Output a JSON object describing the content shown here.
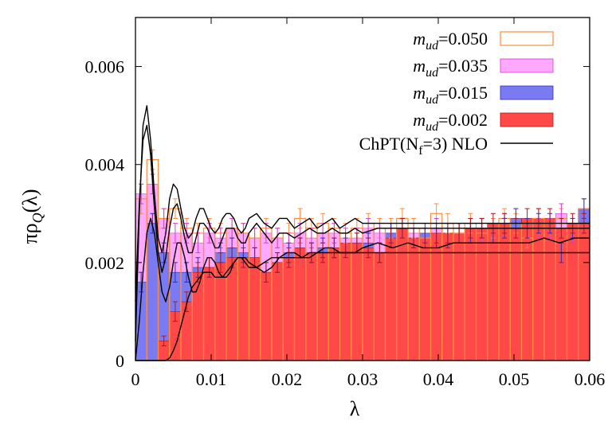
{
  "chart_data": {
    "type": "bar",
    "xlabel": "λ",
    "ylabel_parts": {
      "main": "πρ",
      "sub": "Q",
      "tail": "(λ)"
    },
    "xlim": [
      0,
      0.06
    ],
    "ylim": [
      0,
      0.007
    ],
    "xticks": [
      "0",
      "0.01",
      "0.02",
      "0.03",
      "0.04",
      "0.05",
      "0.06"
    ],
    "yticks": [
      "0",
      "0.002",
      "0.004",
      "0.006"
    ],
    "bin_start": 0.0,
    "bin_width": 0.0015,
    "series": [
      {
        "name_parts": {
          "m": "m",
          "sub": "ud",
          "val": "=0.050"
        },
        "style": "outline",
        "color": "#ff8c40",
        "values": [
          0.0033,
          0.0041,
          0.0029,
          0.0031,
          0.0027,
          0.0026,
          0.0027,
          0.0026,
          0.0027,
          0.0026,
          0.0025,
          0.0027,
          0.0025,
          0.0026,
          0.0029,
          0.0027,
          0.0028,
          0.0027,
          0.0026,
          0.0027,
          0.0028,
          0.0027,
          0.0027,
          0.0029,
          0.0027,
          0.0025,
          0.003,
          0.0028,
          0.0026,
          0.0028,
          0.0026,
          0.0027,
          0.0029,
          0.0028,
          0.0025,
          0.0029,
          0.0027,
          0.0029,
          0.0027,
          0.0031
        ],
        "errors": [
          0.0003,
          0.0002,
          0.0002,
          0.0002,
          0.0002,
          0.0002,
          0.0002,
          0.0002,
          0.0002,
          0.0002,
          0.0002,
          0.0002,
          0.0002,
          0.0002,
          0.0002,
          0.0002,
          0.0002,
          0.0002,
          0.0002,
          0.0002,
          0.0002,
          0.0002,
          0.0002,
          0.0002,
          0.0002,
          0.0002,
          0.0002,
          0.0002,
          0.0002,
          0.0002,
          0.0002,
          0.0002,
          0.0002,
          0.0002,
          0.0002,
          0.0002,
          0.0002,
          0.0002,
          0.0002,
          0.0002
        ]
      },
      {
        "name_parts": {
          "m": "m",
          "sub": "ud",
          "val": "=0.035"
        },
        "style": "fill",
        "color": "#ffa8ff",
        "edge": "#d040d0",
        "values": [
          0.0034,
          0.0036,
          0.0029,
          0.0026,
          0.0026,
          0.0024,
          0.0026,
          0.0025,
          0.0027,
          0.0026,
          0.0025,
          0.0026,
          0.0025,
          0.0024,
          0.0026,
          0.0025,
          0.0026,
          0.0026,
          0.0025,
          0.0025,
          0.0027,
          0.0026,
          0.0026,
          0.0027,
          0.0026,
          0.0025,
          0.0027,
          0.0026,
          0.0026,
          0.0027,
          0.0026,
          0.0026,
          0.0028,
          0.0027,
          0.0026,
          0.0027,
          0.0027,
          0.003,
          0.0026,
          0.0028
        ],
        "errors": [
          0.0002,
          0.0002,
          0.0002,
          0.0002,
          0.0002,
          0.0002,
          0.0002,
          0.0002,
          0.0002,
          0.0002,
          0.0002,
          0.0002,
          0.0002,
          0.0002,
          0.0002,
          0.0002,
          0.0002,
          0.0002,
          0.0002,
          0.0002,
          0.0002,
          0.0002,
          0.0002,
          0.0002,
          0.0002,
          0.0002,
          0.0002,
          0.0002,
          0.0002,
          0.0002,
          0.0002,
          0.0002,
          0.0002,
          0.0002,
          0.0002,
          0.0002,
          0.0002,
          0.0002,
          0.0002,
          0.0002
        ]
      },
      {
        "name_parts": {
          "m": "m",
          "sub": "ud",
          "val": "=0.015"
        },
        "style": "fill",
        "color": "#7a7af2",
        "edge": "#3030b0",
        "values": [
          0.0016,
          0.0028,
          0.0022,
          0.0018,
          0.0018,
          0.0019,
          0.0019,
          0.0022,
          0.0023,
          0.0022,
          0.0021,
          0.0018,
          0.002,
          0.0022,
          0.0023,
          0.0022,
          0.0023,
          0.0023,
          0.0023,
          0.0024,
          0.0024,
          0.0022,
          0.0026,
          0.0027,
          0.0025,
          0.0026,
          0.0025,
          0.0025,
          0.0026,
          0.0026,
          0.0027,
          0.0026,
          0.0027,
          0.0029,
          0.0027,
          0.0028,
          0.0028,
          0.0022,
          0.0027,
          0.0031
        ],
        "errors": [
          0.0002,
          0.0002,
          0.0002,
          0.0002,
          0.0002,
          0.0002,
          0.0002,
          0.0002,
          0.0002,
          0.0002,
          0.0002,
          0.0002,
          0.0002,
          0.0002,
          0.0002,
          0.0002,
          0.0002,
          0.0002,
          0.0002,
          0.0002,
          0.0002,
          0.0002,
          0.0002,
          0.0002,
          0.0002,
          0.0002,
          0.0002,
          0.0002,
          0.0002,
          0.0002,
          0.0002,
          0.0002,
          0.0002,
          0.0002,
          0.0002,
          0.0002,
          0.0002,
          0.0002,
          0.0002,
          0.0002
        ]
      },
      {
        "name_parts": {
          "m": "m",
          "sub": "ud",
          "val": "=0.002"
        },
        "style": "fill",
        "color": "#ff4848",
        "edge": "#b01818",
        "values": [
          0.0,
          0.0,
          0.0004,
          0.001,
          0.0012,
          0.0018,
          0.0019,
          0.002,
          0.0021,
          0.0021,
          0.0021,
          0.0018,
          0.002,
          0.0021,
          0.0023,
          0.0022,
          0.0022,
          0.0023,
          0.0024,
          0.0024,
          0.0023,
          0.0022,
          0.0025,
          0.0027,
          0.0025,
          0.0025,
          0.0026,
          0.0026,
          0.0026,
          0.0027,
          0.0027,
          0.0028,
          0.0028,
          0.0027,
          0.0029,
          0.0029,
          0.0029,
          0.0027,
          0.0028,
          0.0028
        ],
        "errors": [
          0.0,
          0.0,
          0.0001,
          0.0002,
          0.0002,
          0.0002,
          0.0002,
          0.0002,
          0.0002,
          0.0002,
          0.0002,
          0.0002,
          0.0002,
          0.0002,
          0.0002,
          0.0002,
          0.0002,
          0.0002,
          0.0002,
          0.0002,
          0.0002,
          0.0002,
          0.0002,
          0.0002,
          0.0002,
          0.0002,
          0.0002,
          0.0002,
          0.0002,
          0.0002,
          0.0002,
          0.0002,
          0.0002,
          0.0002,
          0.0002,
          0.0002,
          0.0002,
          0.0002,
          0.0002,
          0.0002
        ]
      }
    ],
    "curve_legend": {
      "main": "ChPT(N",
      "sub": "f",
      "tail": "=3) NLO"
    },
    "curves": [
      {
        "x": [
          0.0,
          0.0005,
          0.001,
          0.0015,
          0.002,
          0.0025,
          0.003,
          0.0035,
          0.004,
          0.0045,
          0.005,
          0.0055,
          0.006,
          0.0065,
          0.007,
          0.0075,
          0.008,
          0.0085,
          0.009,
          0.0095,
          0.01,
          0.0105,
          0.011,
          0.0115,
          0.012,
          0.0125,
          0.013,
          0.0135,
          0.014,
          0.0145,
          0.015,
          0.016,
          0.017,
          0.018,
          0.019,
          0.02,
          0.021,
          0.022,
          0.023,
          0.024,
          0.025,
          0.026,
          0.027,
          0.028,
          0.029,
          0.03,
          0.032,
          0.034,
          0.036,
          0.038,
          0.04,
          0.042,
          0.044,
          0.046,
          0.048,
          0.05,
          0.052,
          0.054,
          0.056,
          0.058,
          0.06
        ],
        "y": [
          0.0004,
          0.003,
          0.0048,
          0.0052,
          0.0045,
          0.0034,
          0.0025,
          0.0022,
          0.0026,
          0.0033,
          0.0036,
          0.0035,
          0.0031,
          0.0027,
          0.0025,
          0.0026,
          0.0029,
          0.0031,
          0.0031,
          0.0029,
          0.0027,
          0.0026,
          0.0027,
          0.0029,
          0.003,
          0.003,
          0.0029,
          0.0027,
          0.0026,
          0.0027,
          0.0029,
          0.003,
          0.0028,
          0.0027,
          0.0029,
          0.0029,
          0.0027,
          0.0028,
          0.0029,
          0.0027,
          0.0028,
          0.0029,
          0.0027,
          0.0028,
          0.0029,
          0.0028,
          0.0028,
          0.0028,
          0.0028,
          0.0028,
          0.0028,
          0.0028,
          0.0028,
          0.0028,
          0.0028,
          0.0028,
          0.0028,
          0.0028,
          0.0028,
          0.0028,
          0.0028
        ]
      },
      {
        "x": [
          0.0,
          0.0005,
          0.001,
          0.0015,
          0.002,
          0.0025,
          0.003,
          0.0035,
          0.004,
          0.0045,
          0.005,
          0.0055,
          0.006,
          0.0065,
          0.007,
          0.0075,
          0.008,
          0.0085,
          0.009,
          0.0095,
          0.01,
          0.0105,
          0.011,
          0.0115,
          0.012,
          0.0125,
          0.013,
          0.0135,
          0.014,
          0.0145,
          0.015,
          0.016,
          0.017,
          0.018,
          0.019,
          0.02,
          0.021,
          0.022,
          0.023,
          0.024,
          0.025,
          0.026,
          0.027,
          0.028,
          0.029,
          0.03,
          0.032,
          0.034,
          0.036,
          0.038,
          0.04,
          0.042,
          0.044,
          0.046,
          0.048,
          0.05,
          0.052,
          0.054,
          0.056,
          0.058,
          0.06
        ],
        "y": [
          0.0012,
          0.0032,
          0.0045,
          0.0048,
          0.0042,
          0.0031,
          0.0022,
          0.0018,
          0.0021,
          0.0027,
          0.0031,
          0.0032,
          0.0029,
          0.0025,
          0.0022,
          0.0022,
          0.0025,
          0.0028,
          0.0028,
          0.0027,
          0.0025,
          0.0023,
          0.0023,
          0.0025,
          0.0027,
          0.0027,
          0.0027,
          0.0025,
          0.0024,
          0.0024,
          0.0026,
          0.0028,
          0.0026,
          0.0024,
          0.0026,
          0.0026,
          0.0025,
          0.0026,
          0.0027,
          0.0026,
          0.0026,
          0.0027,
          0.0026,
          0.0026,
          0.0027,
          0.0026,
          0.0027,
          0.0027,
          0.0027,
          0.0027,
          0.0027,
          0.0027,
          0.0027,
          0.0027,
          0.0027,
          0.0027,
          0.0027,
          0.0027,
          0.0027,
          0.0027,
          0.0027
        ]
      },
      {
        "x": [
          0.0,
          0.0005,
          0.001,
          0.0015,
          0.002,
          0.0025,
          0.003,
          0.0035,
          0.004,
          0.0045,
          0.005,
          0.0055,
          0.006,
          0.0065,
          0.007,
          0.0075,
          0.008,
          0.0085,
          0.009,
          0.0095,
          0.01,
          0.0105,
          0.011,
          0.0115,
          0.012,
          0.0125,
          0.013,
          0.0135,
          0.014,
          0.0145,
          0.015,
          0.016,
          0.017,
          0.018,
          0.019,
          0.02,
          0.021,
          0.022,
          0.023,
          0.024,
          0.025,
          0.026,
          0.027,
          0.028,
          0.029,
          0.03,
          0.032,
          0.034,
          0.036,
          0.038,
          0.04,
          0.042,
          0.044,
          0.046,
          0.048,
          0.05,
          0.052,
          0.054,
          0.056,
          0.058,
          0.06
        ],
        "y": [
          0.0,
          0.0008,
          0.0018,
          0.0026,
          0.0029,
          0.0026,
          0.002,
          0.0014,
          0.0012,
          0.0015,
          0.002,
          0.0024,
          0.0024,
          0.0021,
          0.0017,
          0.0014,
          0.0014,
          0.0016,
          0.0019,
          0.0021,
          0.0021,
          0.002,
          0.0018,
          0.0017,
          0.0017,
          0.0018,
          0.002,
          0.0021,
          0.0021,
          0.002,
          0.0019,
          0.0019,
          0.002,
          0.0021,
          0.0021,
          0.0021,
          0.0021,
          0.0021,
          0.0022,
          0.0022,
          0.0022,
          0.0022,
          0.0022,
          0.0022,
          0.0022,
          0.0022,
          0.0022,
          0.0022,
          0.0022,
          0.0022,
          0.0022,
          0.0022,
          0.0022,
          0.0022,
          0.0022,
          0.0022,
          0.0022,
          0.0022,
          0.0022,
          0.0022,
          0.0022
        ]
      },
      {
        "x": [
          0.0,
          0.0005,
          0.001,
          0.0015,
          0.002,
          0.0025,
          0.003,
          0.0035,
          0.004,
          0.0045,
          0.005,
          0.0055,
          0.006,
          0.0065,
          0.007,
          0.0075,
          0.008,
          0.0085,
          0.009,
          0.0095,
          0.01,
          0.0105,
          0.011,
          0.0115,
          0.012,
          0.0125,
          0.013,
          0.0135,
          0.014,
          0.0145,
          0.015,
          0.016,
          0.017,
          0.018,
          0.019,
          0.02,
          0.021,
          0.022,
          0.023,
          0.024,
          0.025,
          0.026,
          0.027,
          0.028,
          0.029,
          0.03,
          0.032,
          0.034,
          0.036,
          0.038,
          0.04,
          0.042,
          0.044,
          0.046,
          0.048,
          0.05,
          0.052,
          0.054,
          0.056,
          0.058,
          0.06
        ],
        "y": [
          0.0,
          0.0,
          0.0,
          0.0,
          0.0,
          0.0,
          0.0,
          0.0,
          0.0,
          5e-05,
          0.0002,
          0.0004,
          0.0007,
          0.001,
          0.0013,
          0.0015,
          0.0016,
          0.0017,
          0.0018,
          0.0018,
          0.0018,
          0.0017,
          0.0017,
          0.0017,
          0.0018,
          0.0019,
          0.002,
          0.0021,
          0.0021,
          0.0021,
          0.002,
          0.0019,
          0.0018,
          0.0019,
          0.0021,
          0.0022,
          0.0022,
          0.0021,
          0.0021,
          0.0022,
          0.0023,
          0.0023,
          0.0022,
          0.0022,
          0.0022,
          0.0023,
          0.0024,
          0.0023,
          0.0024,
          0.0023,
          0.0023,
          0.0024,
          0.0024,
          0.0024,
          0.0024,
          0.0024,
          0.0024,
          0.0025,
          0.0024,
          0.0025,
          0.0025
        ]
      }
    ],
    "grid": false,
    "legend_position": "top-right"
  }
}
